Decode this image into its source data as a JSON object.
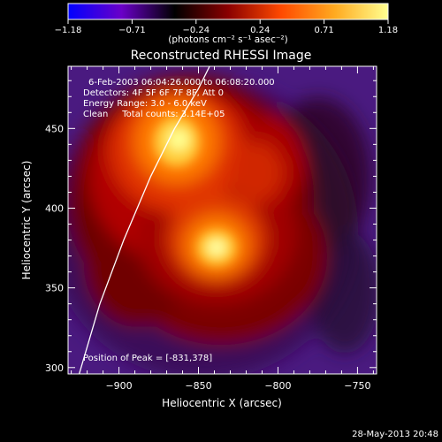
{
  "chart_data": {
    "type": "heatmap",
    "title": "Reconstructed RHESSI Image",
    "colorbar": {
      "ticks": [
        "-1.18",
        "-0.71",
        "-0.24",
        "0.24",
        "0.71",
        "1.18"
      ],
      "unit_label": "(photons cm⁻² s⁻¹ asec⁻²)",
      "range": [
        -1.18,
        1.18
      ],
      "colormap": [
        "#0000ff",
        "#6a00c8",
        "#000000",
        "#8a0000",
        "#ff4a00",
        "#ffaa20",
        "#ffff90"
      ]
    },
    "annotations": [
      "6-Feb-2003 06:04:26.000 to 06:08:20.000",
      "Detectors: 4F 5F 6F 7F 8F, Att 0",
      "Energy Range: 3.0 - 6.0 keV",
      "Clean     Total counts: 3.14E+05"
    ],
    "peak_label": "Position of Peak = [-831,378]",
    "peak": [
      -831,
      378
    ],
    "secondary_peak": [
      -858,
      431
    ],
    "xlabel": "Heliocentric X (arcsec)",
    "ylabel": "Heliocentric Y (arcsec)",
    "xlim": [
      -932,
      -738
    ],
    "ylim": [
      296,
      489
    ],
    "xticks": [
      {
        "value": -900,
        "label": "−900"
      },
      {
        "value": -850,
        "label": "−850"
      },
      {
        "value": -800,
        "label": "−800"
      },
      {
        "value": -750,
        "label": "−750"
      }
    ],
    "yticks": [
      {
        "value": 300,
        "label": "300"
      },
      {
        "value": 350,
        "label": "350"
      },
      {
        "value": 400,
        "label": "400"
      },
      {
        "value": 450,
        "label": "450"
      }
    ],
    "limb_curve": [
      [
        -925,
        296
      ],
      [
        -912,
        340
      ],
      [
        -897,
        380
      ],
      [
        -880,
        420
      ],
      [
        -865,
        450
      ],
      [
        -850,
        475
      ],
      [
        -843,
        489
      ]
    ],
    "timestamp": "28-May-2013 20:48"
  }
}
